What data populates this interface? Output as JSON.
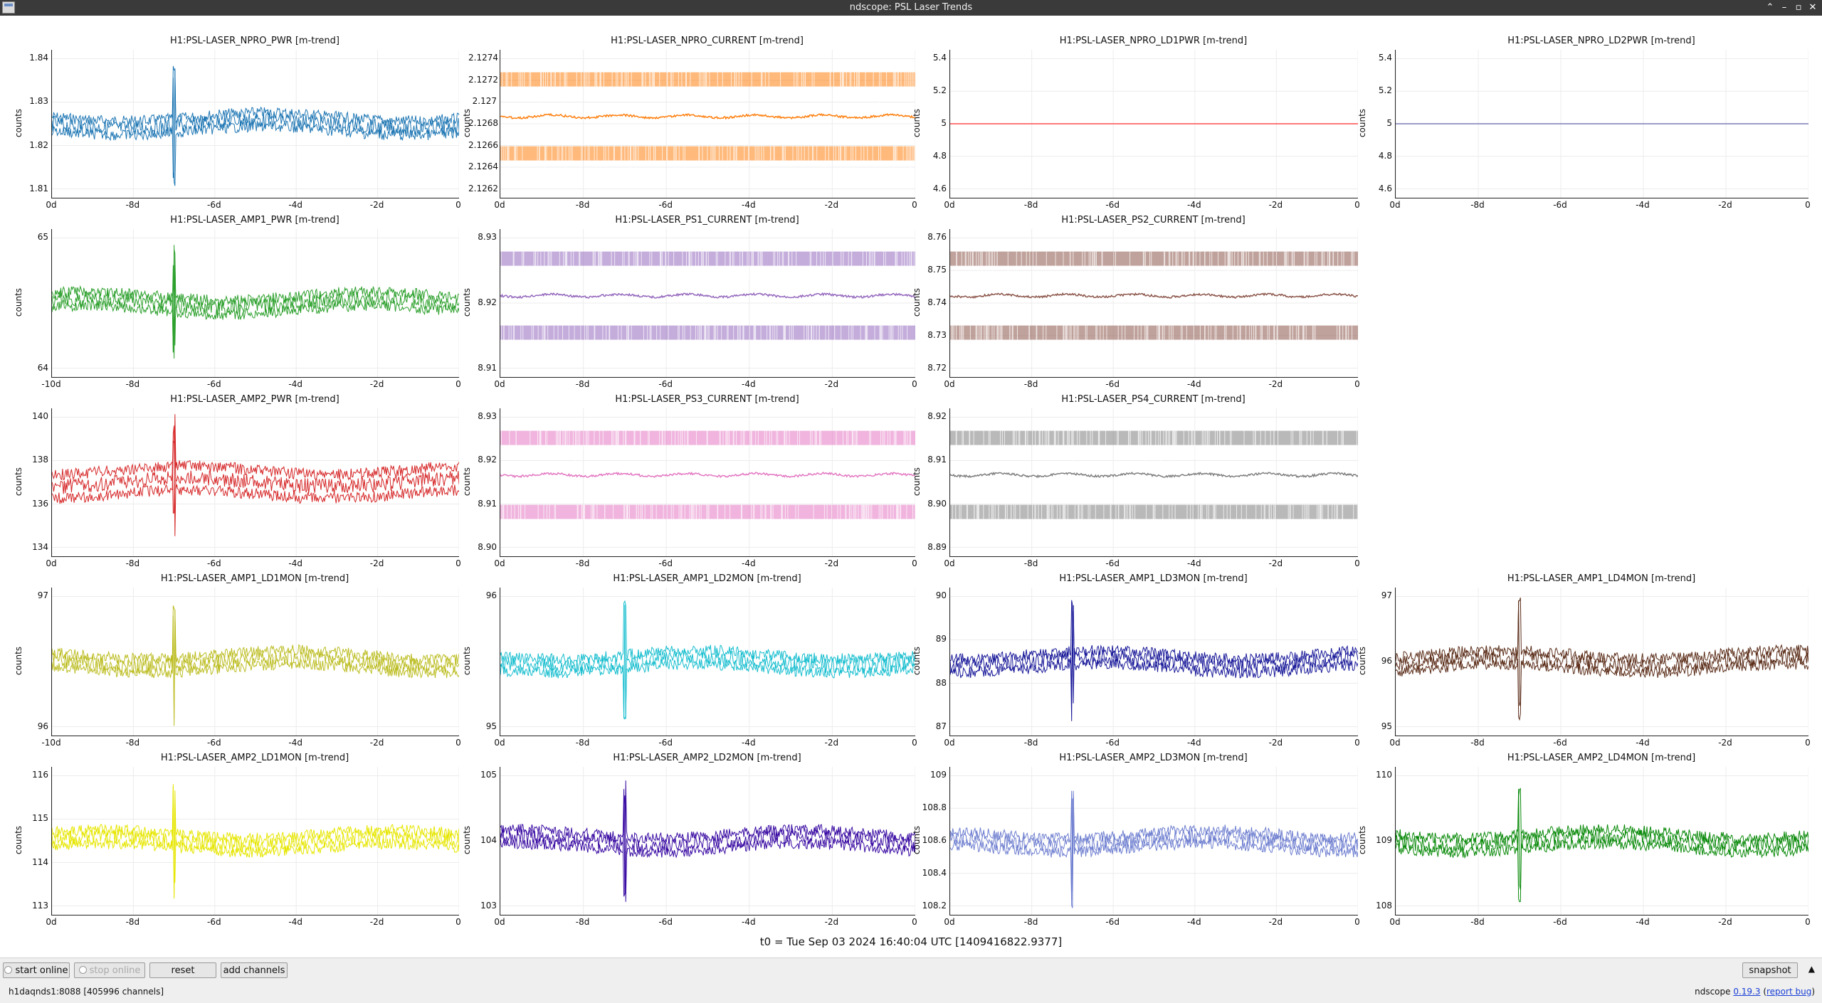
{
  "window": {
    "title": "ndscope: PSL Laser Trends"
  },
  "ylabel": "counts",
  "plots": [
    {
      "title": "H1:PSL-LASER_NPRO_PWR [m-trend]",
      "color": "#1f77b4",
      "yticks": [
        "1.84",
        "1.83",
        "1.82",
        "1.81"
      ],
      "xticks": [
        "0d",
        "-8d",
        "-6d",
        "-4d",
        "-2d",
        "0"
      ],
      "style": "noise"
    },
    {
      "title": "H1:PSL-LASER_NPRO_CURRENT [m-trend]",
      "color": "#ff7f0e",
      "yticks": [
        "2.1274",
        "2.1272",
        "2.127",
        "2.1268",
        "2.1266",
        "2.1264",
        "2.1262"
      ],
      "xticks": [
        "0d",
        "-8d",
        "-6d",
        "-4d",
        "-2d",
        "0"
      ],
      "style": "bands"
    },
    {
      "title": "H1:PSL-LASER_NPRO_LD1PWR [m-trend]",
      "color": "#ff4d4d",
      "yticks": [
        "5.4",
        "5.2",
        "5",
        "4.8",
        "4.6"
      ],
      "xticks": [
        "0d",
        "-8d",
        "-6d",
        "-4d",
        "-2d",
        "0"
      ],
      "style": "flat"
    },
    {
      "title": "H1:PSL-LASER_NPRO_LD2PWR [m-trend]",
      "color": "#7b7bb8",
      "yticks": [
        "5.4",
        "5.2",
        "5",
        "4.8",
        "4.6"
      ],
      "xticks": [
        "0d",
        "-8d",
        "-6d",
        "-4d",
        "-2d",
        "0"
      ],
      "style": "flat"
    },
    {
      "title": "H1:PSL-LASER_AMP1_PWR [m-trend]",
      "color": "#2ca02c",
      "yticks": [
        "65",
        "64"
      ],
      "xticks": [
        "-10d",
        "-8d",
        "-6d",
        "-4d",
        "-2d",
        "0"
      ],
      "style": "noise"
    },
    {
      "title": "H1:PSL-LASER_PS1_CURRENT [m-trend]",
      "color": "#9467bd",
      "yticks": [
        "8.93",
        "8.92",
        "8.91"
      ],
      "xticks": [
        "0d",
        "-8d",
        "-6d",
        "-4d",
        "-2d",
        "0"
      ],
      "style": "bands"
    },
    {
      "title": "H1:PSL-LASER_PS2_CURRENT [m-trend]",
      "color": "#8c564b",
      "yticks": [
        "8.76",
        "8.75",
        "8.74",
        "8.73",
        "8.72"
      ],
      "xticks": [
        "0d",
        "-8d",
        "-6d",
        "-4d",
        "-2d",
        "0"
      ],
      "style": "bands"
    },
    null,
    {
      "title": "H1:PSL-LASER_AMP2_PWR [m-trend]",
      "color": "#d62728",
      "yticks": [
        "140",
        "138",
        "136",
        "134"
      ],
      "xticks": [
        "0d",
        "-8d",
        "-6d",
        "-4d",
        "-2d",
        "0"
      ],
      "style": "noise"
    },
    {
      "title": "H1:PSL-LASER_PS3_CURRENT [m-trend]",
      "color": "#e377c2",
      "yticks": [
        "8.93",
        "8.92",
        "8.91",
        "8.90"
      ],
      "xticks": [
        "0d",
        "-8d",
        "-6d",
        "-4d",
        "-2d",
        "0"
      ],
      "style": "bands"
    },
    {
      "title": "H1:PSL-LASER_PS4_CURRENT [m-trend]",
      "color": "#7f7f7f",
      "yticks": [
        "8.92",
        "8.91",
        "8.90",
        "8.89"
      ],
      "xticks": [
        "0d",
        "-8d",
        "-6d",
        "-4d",
        "-2d",
        "0"
      ],
      "style": "bands"
    },
    null,
    {
      "title": "H1:PSL-LASER_AMP1_LD1MON [m-trend]",
      "color": "#bcbd22",
      "yticks": [
        "97",
        "96"
      ],
      "xticks": [
        "-10d",
        "-8d",
        "-6d",
        "-4d",
        "-2d",
        "0"
      ],
      "style": "noise"
    },
    {
      "title": "H1:PSL-LASER_AMP1_LD2MON [m-trend]",
      "color": "#17becf",
      "yticks": [
        "96",
        "95"
      ],
      "xticks": [
        "0d",
        "-8d",
        "-6d",
        "-4d",
        "-2d",
        "0"
      ],
      "style": "noise"
    },
    {
      "title": "H1:PSL-LASER_AMP1_LD3MON [m-trend]",
      "color": "#1a1a9a",
      "yticks": [
        "90",
        "89",
        "88",
        "87"
      ],
      "xticks": [
        "0d",
        "-8d",
        "-6d",
        "-4d",
        "-2d",
        "0"
      ],
      "style": "noise"
    },
    {
      "title": "H1:PSL-LASER_AMP1_LD4MON [m-trend]",
      "color": "#5c2e1a",
      "yticks": [
        "97",
        "96",
        "95"
      ],
      "xticks": [
        "0d",
        "-8d",
        "-6d",
        "-4d",
        "-2d",
        "0"
      ],
      "style": "noise"
    },
    {
      "title": "H1:PSL-LASER_AMP2_LD1MON [m-trend]",
      "color": "#e6e600",
      "yticks": [
        "116",
        "115",
        "114",
        "113"
      ],
      "xticks": [
        "0d",
        "-8d",
        "-6d",
        "-4d",
        "-2d",
        "0"
      ],
      "style": "noise"
    },
    {
      "title": "H1:PSL-LASER_AMP2_LD2MON [m-trend]",
      "color": "#3a0ca3",
      "yticks": [
        "105",
        "104",
        "103"
      ],
      "xticks": [
        "0d",
        "-8d",
        "-6d",
        "-4d",
        "-2d",
        "0"
      ],
      "style": "noise"
    },
    {
      "title": "H1:PSL-LASER_AMP2_LD3MON [m-trend]",
      "color": "#6f7fd0",
      "yticks": [
        "109",
        "108.8",
        "108.6",
        "108.4",
        "108.2"
      ],
      "xticks": [
        "0d",
        "-8d",
        "-6d",
        "-4d",
        "-2d",
        "0"
      ],
      "style": "noise"
    },
    {
      "title": "H1:PSL-LASER_AMP2_LD4MON [m-trend]",
      "color": "#0a8a0a",
      "yticks": [
        "110",
        "109",
        "108"
      ],
      "xticks": [
        "0d",
        "-8d",
        "-6d",
        "-4d",
        "-2d",
        "0"
      ],
      "style": "noise"
    }
  ],
  "t0": "t0 = Tue Sep 03 2024 16:40:04 UTC [1409416822.9377]",
  "buttons": {
    "start_online": "start online",
    "stop_online": "stop online",
    "reset": "reset",
    "add_channels": "add channels",
    "snapshot": "snapshot"
  },
  "status": "h1daqnds1:8088  [405996 channels]",
  "version": {
    "prefix": "ndscope ",
    "link": "0.19.3",
    "report": "report bug"
  }
}
